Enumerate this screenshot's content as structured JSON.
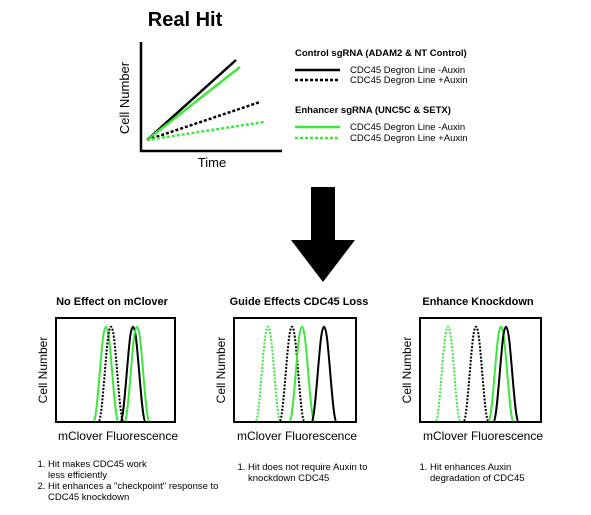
{
  "top": {
    "title": "Real Hit",
    "ylabel": "Cell Number",
    "xlabel": "Time",
    "legend": {
      "control_heading": "Control sgRNA (ADAM2 & NT Control)",
      "control_minus": "CDC45  Degron Line -Auxin",
      "control_plus": "CDC45 Degron Line +Auxin",
      "enhancer_heading": "Enhancer sgRNA (UNC5C & SETX)",
      "enhancer_minus": "CDC45  Degron Line -Auxin",
      "enhancer_plus": "CDC45 Degron Line +Auxin"
    }
  },
  "panels": [
    {
      "title": "No Effect on mClover",
      "ylabel": "Cell Number",
      "xlabel": "mClover Fluorescence",
      "notes": [
        "Hit makes CDC45 work less efficiently",
        "Hit enhances a \"checkpoint\" response to CDC45 knockdown"
      ]
    },
    {
      "title": "Guide Effects CDC45 Loss",
      "ylabel": "Cell Number",
      "xlabel": "mClover Fluorescence",
      "notes": [
        "Hit does not require Auxin to knockdown CDC45"
      ]
    },
    {
      "title": "Enhance Knockdown",
      "ylabel": "Cell Number",
      "xlabel": "mClover Fluorescence",
      "notes": [
        "Hit enhances Auxin degradation of CDC45"
      ]
    }
  ],
  "colors": {
    "black": "#000000",
    "green": "#3ee63e"
  }
}
